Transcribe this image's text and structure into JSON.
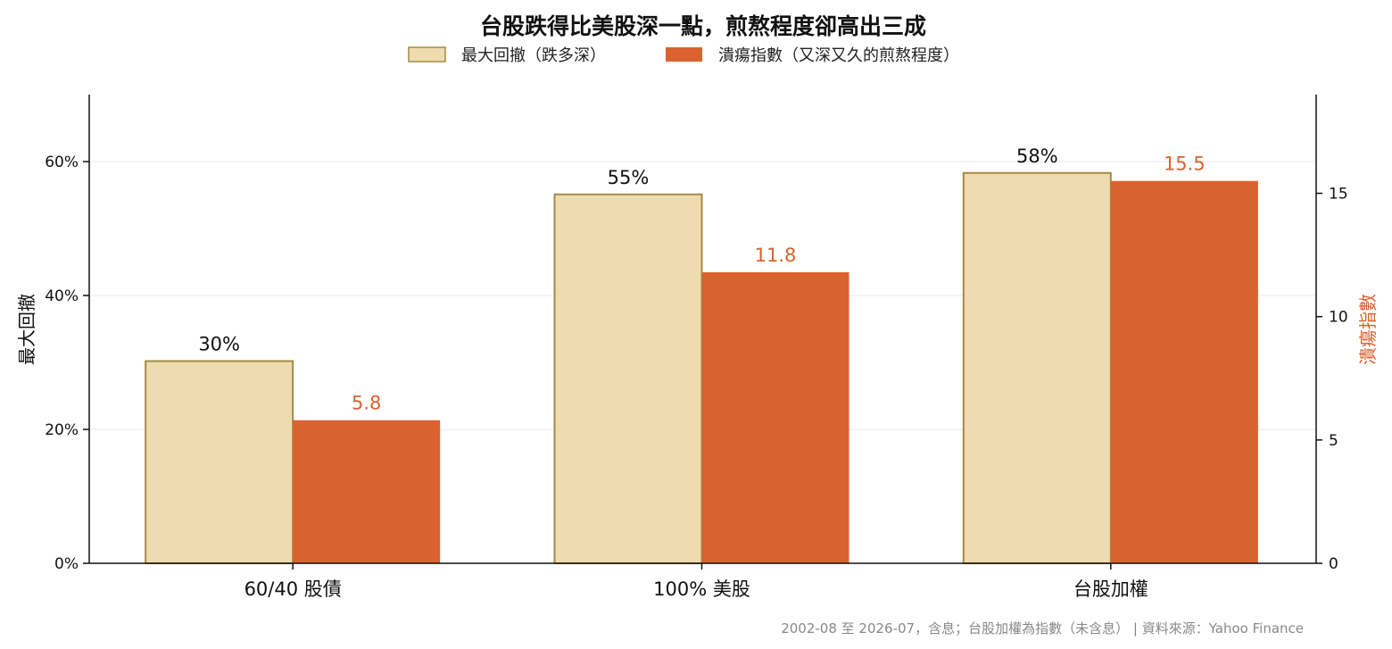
{
  "chart_data": {
    "type": "bar",
    "title": "台股跌得比美股深一點，煎熬程度卻高出三成",
    "categories": [
      "60/40 股債",
      "100% 美股",
      "台股加權"
    ],
    "series": [
      {
        "name": "最大回撤（跌多深）",
        "axis": "left",
        "values": [
          30.2,
          55.1,
          58.3
        ],
        "labels": [
          "30%",
          "55%",
          "58%"
        ],
        "color": "#EEDCB0",
        "edge_color": "#A68A45"
      },
      {
        "name": "潰瘍指數（又深又久的煎熬程度）",
        "axis": "right",
        "values": [
          5.8,
          11.8,
          15.5
        ],
        "labels": [
          "5.8",
          "11.8",
          "15.5"
        ],
        "color": "#D9622F",
        "label_color": "#D9622F"
      }
    ],
    "y_left": {
      "label": "最大回撤",
      "lim": [
        0,
        70
      ],
      "ticks": [
        0,
        20,
        40,
        60
      ],
      "tick_labels": [
        "0%",
        "20%",
        "40%",
        "60%"
      ]
    },
    "y_right": {
      "label": "潰瘍指數",
      "lim": [
        0,
        19
      ],
      "ticks": [
        0,
        5,
        10,
        15
      ],
      "tick_labels": [
        "0",
        "5",
        "10",
        "15"
      ],
      "color": "#D9622F"
    },
    "grid": true,
    "legend_position": "top-center",
    "footnote": "2002-08 至 2026-07，含息；台股加權為指數（未含息） | 資料來源：Yahoo Finance"
  }
}
